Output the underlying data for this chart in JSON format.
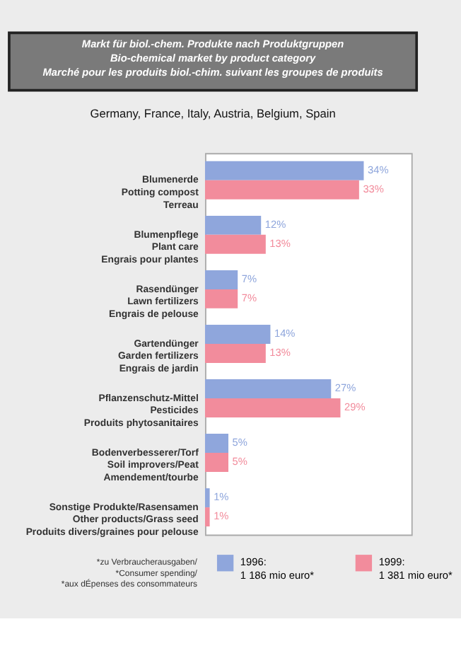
{
  "chart_data": {
    "type": "bar",
    "orientation": "horizontal",
    "title": "Markt für biol.-chem. Produkte nach Produktgruppen\nBio-chemical market by product category\nMarché pour les produits biol.-chim. suivant les groupes de produits",
    "subtitle": "Germany, France, Italy, Austria, Belgium, Spain",
    "categories": [
      "Blumenerde\nPotting compost\nTerreau",
      "Blumenpflege\nPlant care\nEngrais pour plantes",
      "Rasendünger\nLawn fertilizers\nEngrais de pelouse",
      "Gartendünger\nGarden fertilizers\nEngrais de jardin",
      "Pflanzenschutz-Mittel\nPesticides\nProduits phytosanitaires",
      "Bodenverbesserer/Torf\nSoil improvers/Peat\nAmendement/tourbe",
      "Sonstige Produkte/Rasensamen\nOther products/Grass seed\nProduits divers/graines pour pelouse"
    ],
    "series": [
      {
        "name": "1996:\n1 186 mio euro*",
        "color": "#8fa6dc",
        "values": [
          34,
          12,
          7,
          14,
          27,
          5,
          1
        ],
        "value_labels": [
          "34%",
          "12%",
          "7%",
          "14%",
          "27%",
          "5%",
          "1%"
        ]
      },
      {
        "name": "1999:\n1 381 mio euro*",
        "color": "#f28c9c",
        "values": [
          33,
          13,
          7,
          13,
          29,
          5,
          1
        ],
        "value_labels": [
          "33%",
          "13%",
          "7%",
          "13%",
          "29%",
          "5%",
          "1%"
        ]
      }
    ],
    "legend": "bottom",
    "annotations": [
      "*zu Verbraucherausgaben/\n*Consumer spending/\n*aux dÉpenses des consommateurs"
    ]
  }
}
